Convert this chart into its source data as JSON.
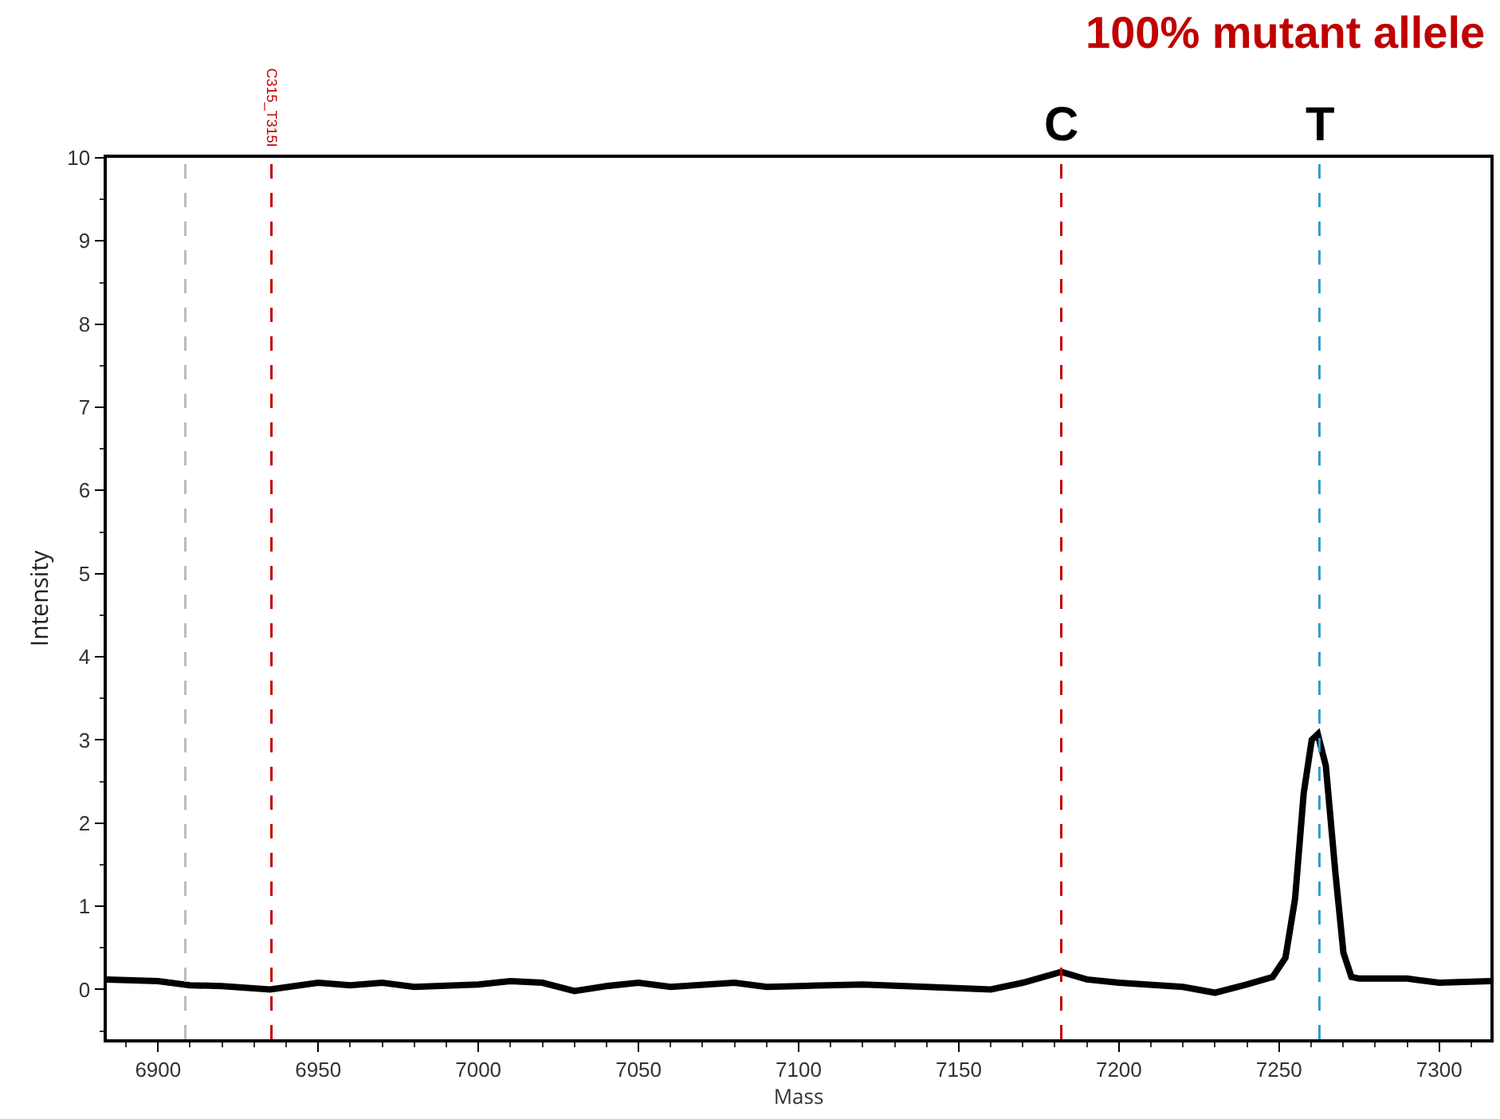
{
  "chart_data": {
    "type": "line",
    "title": "100% mutant allele",
    "xlabel": "Mass",
    "ylabel": "Intensity",
    "x": [
      6884,
      6900,
      6910,
      6920,
      6935,
      6950,
      6960,
      6970,
      6980,
      7000,
      7010,
      7020,
      7030,
      7040,
      7050,
      7060,
      7080,
      7090,
      7100,
      7120,
      7140,
      7160,
      7170,
      7182,
      7190,
      7200,
      7220,
      7230,
      7240,
      7248,
      7252,
      7255,
      7257.7,
      7260.2,
      7262.1,
      7264.6,
      7267.6,
      7270.1,
      7272.6,
      7275,
      7290,
      7300,
      7316
    ],
    "series": [
      {
        "color": "#000000",
        "values": [
          0.12,
          0.1,
          0.05,
          0.04,
          0.0,
          0.08,
          0.05,
          0.08,
          0.03,
          0.06,
          0.1,
          0.08,
          -0.02,
          0.04,
          0.08,
          0.03,
          0.08,
          0.03,
          0.04,
          0.06,
          0.03,
          0.0,
          0.08,
          0.21,
          0.12,
          0.08,
          0.03,
          -0.04,
          0.06,
          0.15,
          0.38,
          1.09,
          2.36,
          3.0,
          3.07,
          2.69,
          1.4,
          0.44,
          0.15,
          0.13,
          0.13,
          0.08,
          0.1
        ]
      }
    ],
    "xlim": [
      6884,
      7316
    ],
    "ylim": [
      -0.6,
      10
    ],
    "xticks": [
      6900,
      6950,
      7000,
      7050,
      7100,
      7150,
      7200,
      7250,
      7300
    ],
    "yticks": [
      0,
      1,
      2,
      3,
      4,
      5,
      6,
      7,
      8,
      9,
      10
    ],
    "grid": false,
    "marker": "none",
    "line_style": "solid",
    "ref_lines": [
      {
        "axis": "x",
        "value": 6908.5,
        "color": "#bbbbbb",
        "line_style": "dashed"
      },
      {
        "axis": "x",
        "value": 6935.4,
        "label": "C315_T315I",
        "color": "#c00000",
        "line_style": "dashed"
      },
      {
        "axis": "x",
        "value": 7182,
        "label": "C",
        "color": "#c00000",
        "line_style": "dashed"
      },
      {
        "axis": "x",
        "value": 7262.6,
        "label": "T",
        "color": "#3399cc",
        "line_style": "dashed"
      }
    ]
  }
}
